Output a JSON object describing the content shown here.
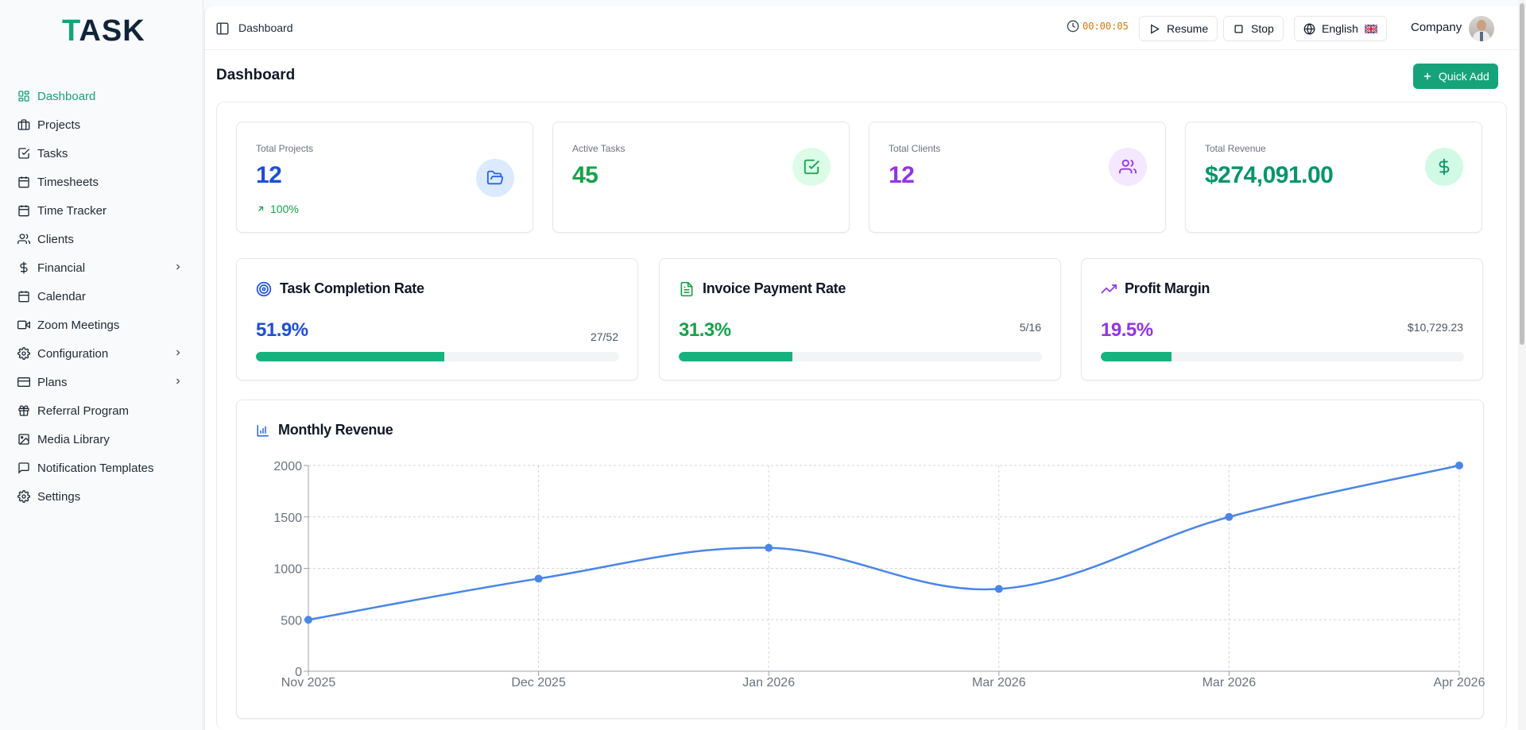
{
  "brand": {
    "logo_t": "T",
    "logo_rest": "ASK"
  },
  "sidebar": {
    "items": [
      {
        "label": "Dashboard",
        "icon": "dashboard-icon",
        "active": true
      },
      {
        "label": "Projects",
        "icon": "briefcase-icon"
      },
      {
        "label": "Tasks",
        "icon": "checkbox-icon"
      },
      {
        "label": "Timesheets",
        "icon": "calendar-icon"
      },
      {
        "label": "Time Tracker",
        "icon": "calendar-icon"
      },
      {
        "label": "Clients",
        "icon": "users-icon"
      },
      {
        "label": "Financial",
        "icon": "dollar-icon",
        "has_children": true
      },
      {
        "label": "Calendar",
        "icon": "calendar-icon"
      },
      {
        "label": "Zoom Meetings",
        "icon": "video-icon"
      },
      {
        "label": "Configuration",
        "icon": "gear-icon",
        "has_children": true
      },
      {
        "label": "Plans",
        "icon": "card-icon",
        "has_children": true
      },
      {
        "label": "Referral Program",
        "icon": "gift-icon"
      },
      {
        "label": "Media Library",
        "icon": "image-icon"
      },
      {
        "label": "Notification Templates",
        "icon": "message-icon"
      },
      {
        "label": "Settings",
        "icon": "gear-icon"
      }
    ]
  },
  "topbar": {
    "breadcrumb": "Dashboard",
    "timer": "00:00:05",
    "resume_label": "Resume",
    "stop_label": "Stop",
    "language_label": "English",
    "company_label": "Company"
  },
  "page": {
    "title": "Dashboard",
    "quick_add_label": "Quick Add"
  },
  "stats": [
    {
      "label": "Total Projects",
      "value": "12",
      "delta": "100%",
      "color": "#1d4ed8",
      "icon": "folder-open-icon",
      "icon_bg": "#dbeafe",
      "icon_color": "#2563eb"
    },
    {
      "label": "Active Tasks",
      "value": "45",
      "color": "#16a34a",
      "icon": "check-square-icon",
      "icon_bg": "#dcfce7",
      "icon_color": "#16a34a"
    },
    {
      "label": "Total Clients",
      "value": "12",
      "color": "#9333ea",
      "icon": "users-icon",
      "icon_bg": "#f3e8ff",
      "icon_color": "#9333ea"
    },
    {
      "label": "Total Revenue",
      "value": "$274,091.00",
      "color": "#059669",
      "icon": "dollar-icon",
      "icon_bg": "#d1fae5",
      "icon_color": "#059669"
    }
  ],
  "rates": [
    {
      "title": "Task Completion Rate",
      "percent": "51.9%",
      "detail": "27/52",
      "fill_fraction": 0.519,
      "color": "#1d4ed8",
      "icon": "target-icon"
    },
    {
      "title": "Invoice Payment Rate",
      "percent": "31.3%",
      "detail": "5/16",
      "fill_fraction": 0.313,
      "color": "#16a34a",
      "icon": "file-icon"
    },
    {
      "title": "Profit Margin",
      "percent": "19.5%",
      "detail": "$10,729.23",
      "fill_fraction": 0.195,
      "color": "#9333ea",
      "icon": "trending-up-icon"
    }
  ],
  "chart_card": {
    "title": "Monthly Revenue",
    "icon": "bar-chart-icon"
  },
  "chart_data": {
    "type": "line",
    "title": "Monthly Revenue",
    "categories": [
      "Nov 2025",
      "Dec 2025",
      "Jan 2026",
      "Mar 2026",
      "Mar 2026",
      "Apr 2026"
    ],
    "series": [
      {
        "values": [
          500,
          900,
          1200,
          800,
          1500,
          2000
        ],
        "color": "#4a86e8"
      }
    ],
    "yticks": [
      "0",
      "500",
      "1000",
      "1500",
      "2000"
    ],
    "ylim": [
      0,
      2000
    ],
    "grid": true,
    "xlabel": "",
    "ylabel": ""
  }
}
